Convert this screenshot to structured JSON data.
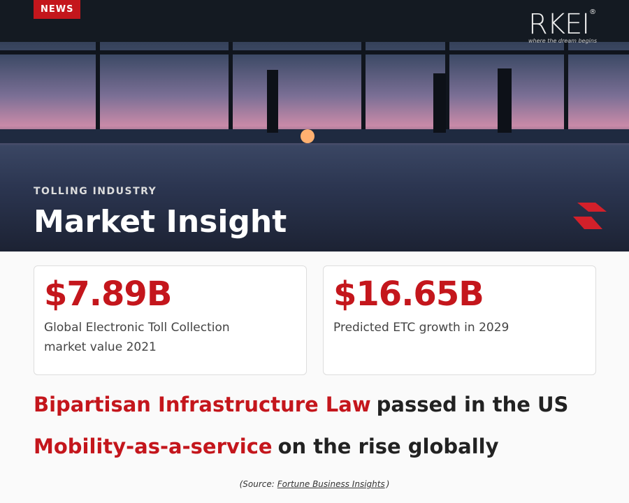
{
  "header": {
    "badge": "NEWS",
    "logo": {
      "name": "RKEI",
      "mark": "®",
      "tagline": "where the dream begins"
    },
    "kicker": "TOLLING INDUSTRY",
    "title": "Market Insight"
  },
  "cards": [
    {
      "figure": "$7.89B",
      "caption": "Global Electronic Toll Collection market value 2021"
    },
    {
      "figure": "$16.65B",
      "caption": "Predicted ETC growth in 2029"
    }
  ],
  "headlines": [
    {
      "highlight": "Bipartisan Infrastructure Law",
      "rest": "passed in the US"
    },
    {
      "highlight": "Mobility-as-a-service",
      "rest": "on the rise globally"
    }
  ],
  "source": {
    "prefix": "(Source:",
    "link": "Fortune Business Insights",
    "suffix": ")"
  }
}
